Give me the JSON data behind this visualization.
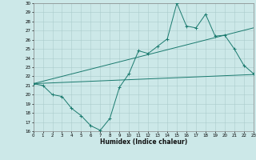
{
  "title": "",
  "xlabel": "Humidex (Indice chaleur)",
  "ylabel": "",
  "bg_color": "#cce8e8",
  "line_color": "#1a7a6e",
  "grid_color": "#aacccc",
  "ylim": [
    16,
    30
  ],
  "xlim": [
    0,
    23
  ],
  "yticks": [
    16,
    17,
    18,
    19,
    20,
    21,
    22,
    23,
    24,
    25,
    26,
    27,
    28,
    29,
    30
  ],
  "xticks": [
    0,
    1,
    2,
    3,
    4,
    5,
    6,
    7,
    8,
    9,
    10,
    11,
    12,
    13,
    14,
    15,
    16,
    17,
    18,
    19,
    20,
    21,
    22,
    23
  ],
  "line1_x": [
    0,
    1,
    2,
    3,
    4,
    5,
    6,
    7,
    8,
    9,
    10,
    11,
    12,
    13,
    14,
    15,
    16,
    17,
    18,
    19,
    20,
    21,
    22,
    23
  ],
  "line1_y": [
    21.2,
    21.0,
    20.0,
    19.8,
    18.5,
    17.7,
    16.6,
    16.1,
    17.4,
    20.8,
    22.3,
    24.8,
    24.5,
    25.3,
    26.1,
    30.0,
    27.5,
    27.3,
    28.8,
    26.4,
    26.5,
    25.0,
    23.2,
    22.3
  ],
  "line2_x": [
    0,
    23
  ],
  "line2_y": [
    21.2,
    27.3
  ],
  "line3_x": [
    0,
    23
  ],
  "line3_y": [
    21.2,
    22.2
  ]
}
